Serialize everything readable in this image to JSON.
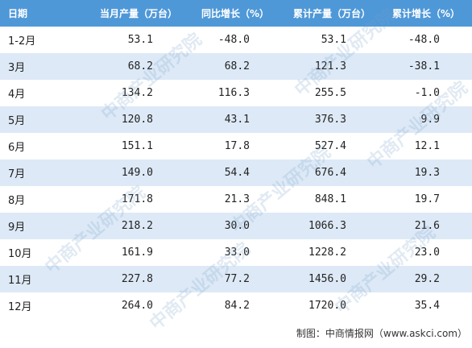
{
  "table": {
    "header": [
      "日期",
      "当月产量（万台）",
      "同比增长（%）",
      "累计产量（万台）",
      "累计增长（%）"
    ],
    "rows": [
      [
        "1-2月",
        "53.1",
        "-48.0",
        "53.1",
        "-48.0"
      ],
      [
        "3月",
        "68.2",
        "68.2",
        "121.3",
        "-38.1"
      ],
      [
        "4月",
        "134.2",
        "116.3",
        "255.5",
        "-1.0"
      ],
      [
        "5月",
        "120.8",
        "43.1",
        "376.3",
        "9.9"
      ],
      [
        "6月",
        "151.1",
        "17.8",
        "527.4",
        "12.1"
      ],
      [
        "7月",
        "149.0",
        "54.4",
        "676.4",
        "19.3"
      ],
      [
        "8月",
        "171.8",
        "21.3",
        "848.1",
        "19.7"
      ],
      [
        "9月",
        "218.2",
        "30.0",
        "1066.3",
        "21.6"
      ],
      [
        "10月",
        "161.9",
        "33.0",
        "1228.2",
        "23.0"
      ],
      [
        "11月",
        "227.8",
        "77.2",
        "1456.0",
        "29.2"
      ],
      [
        "12月",
        "264.0",
        "84.2",
        "1720.0",
        "35.4"
      ]
    ]
  },
  "watermark": "中商产业研究院",
  "footer": "制图：中商情报网（www.askci.com）"
}
